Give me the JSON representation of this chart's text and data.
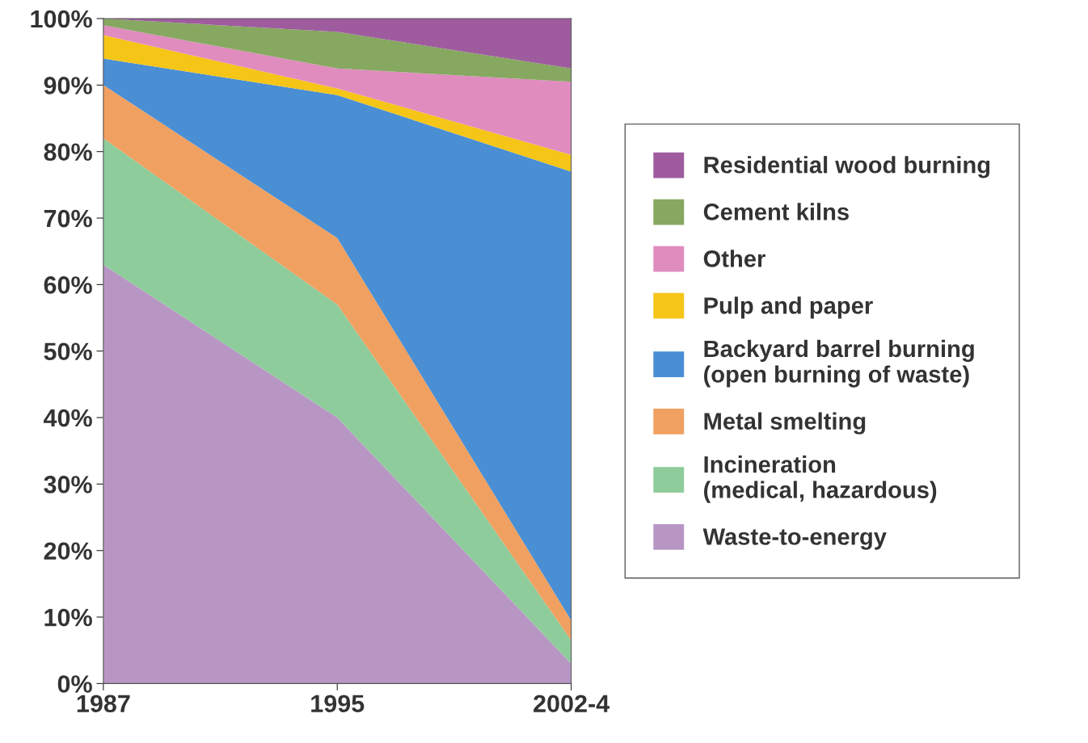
{
  "chart_data": {
    "type": "area",
    "stacked": true,
    "categories": [
      "1987",
      "1995",
      "2002-4"
    ],
    "ylim": [
      0,
      100
    ],
    "yticks": [
      {
        "value": 0,
        "label": "0%"
      },
      {
        "value": 10,
        "label": "10%"
      },
      {
        "value": 20,
        "label": "20%"
      },
      {
        "value": 30,
        "label": "30%"
      },
      {
        "value": 40,
        "label": "40%"
      },
      {
        "value": 50,
        "label": "50%"
      },
      {
        "value": 60,
        "label": "60%"
      },
      {
        "value": 70,
        "label": "70%"
      },
      {
        "value": 80,
        "label": "80%"
      },
      {
        "value": 90,
        "label": "90%"
      },
      {
        "value": 100,
        "label": "100%"
      }
    ],
    "series": [
      {
        "name": "Waste-to-energy",
        "color": "#b896c4",
        "values": [
          63,
          40,
          3
        ]
      },
      {
        "name": "Incineration\n(medical, hazardous)",
        "color": "#8fcc9c",
        "values": [
          19,
          17,
          3.5
        ]
      },
      {
        "name": "Metal smelting",
        "color": "#f0a060",
        "values": [
          8,
          10,
          3
        ]
      },
      {
        "name": "Backyard barrel burning\n(open burning of waste)",
        "color": "#4a8fd4",
        "values": [
          4,
          21.5,
          67.5
        ]
      },
      {
        "name": "Pulp and paper",
        "color": "#f5c518",
        "values": [
          3.5,
          1,
          2.5
        ]
      },
      {
        "name": "Other",
        "color": "#e08cbf",
        "values": [
          1.5,
          3,
          11
        ]
      },
      {
        "name": "Cement kilns",
        "color": "#86a860",
        "values": [
          1,
          5.5,
          2
        ]
      },
      {
        "name": "Residential wood burning",
        "color": "#9e5c9e",
        "values": [
          0,
          2,
          7.5
        ]
      }
    ],
    "legend": "right",
    "grid": false
  }
}
